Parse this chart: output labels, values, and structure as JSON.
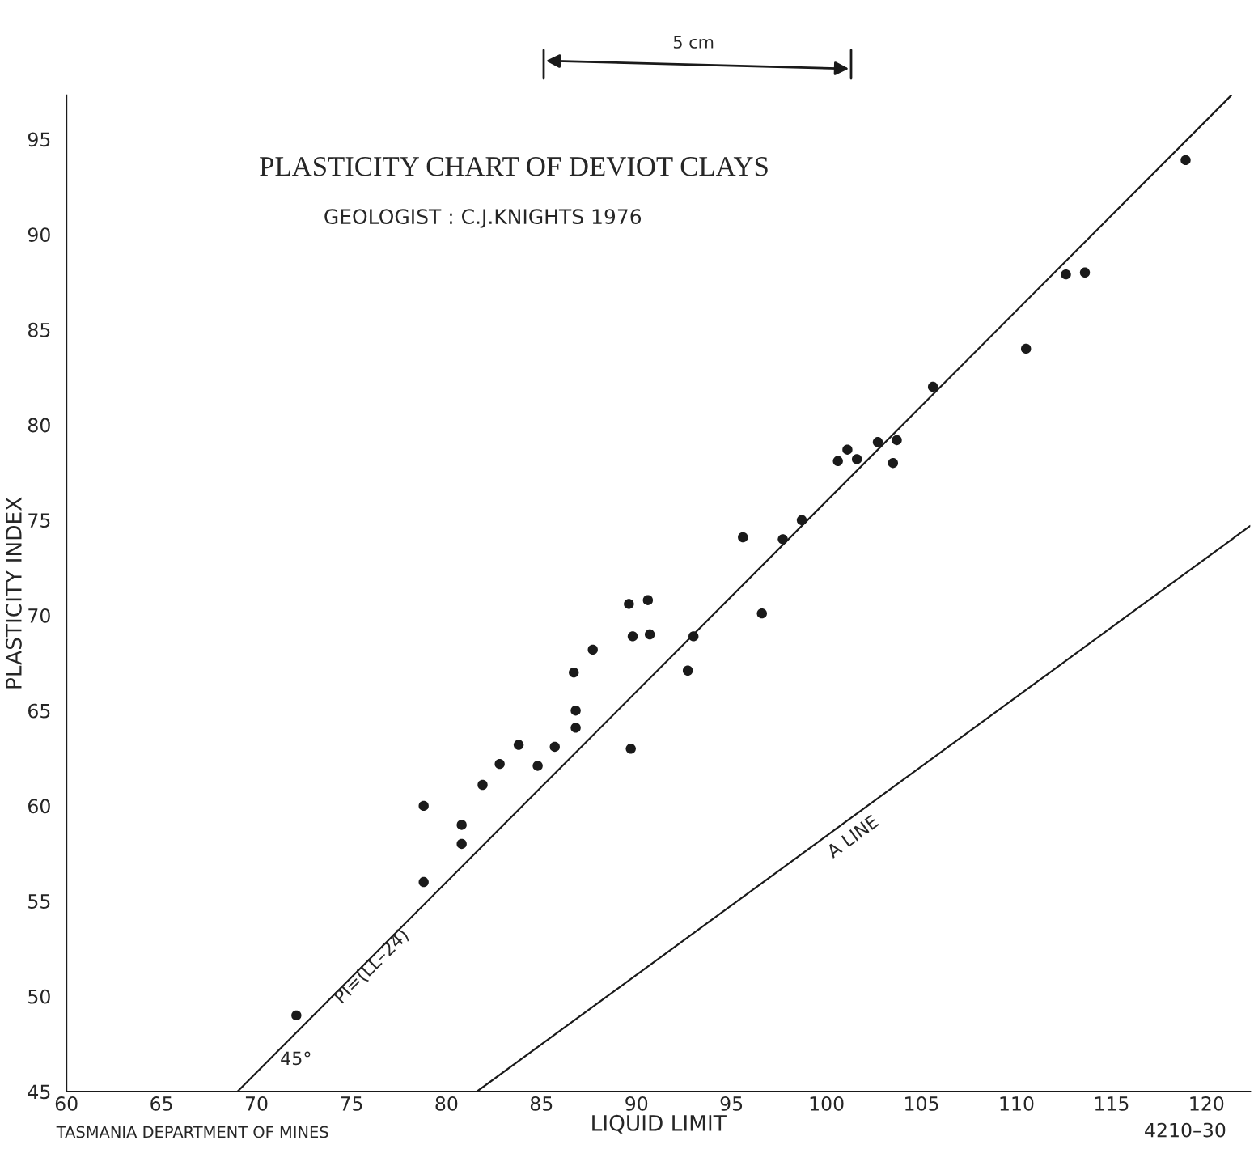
{
  "chart_data": {
    "type": "scatter",
    "title": "PLASTICITY CHART OF DEVIOT CLAYS",
    "subtitle": "GEOLOGIST : C.J.KNIGHTS 1976",
    "xlabel": "LIQUID LIMIT",
    "ylabel": "PLASTICITY INDEX",
    "xlim": [
      60,
      122.3
    ],
    "ylim": [
      45,
      97.3
    ],
    "xticks": [
      60,
      65,
      70,
      75,
      80,
      85,
      90,
      95,
      100,
      105,
      110,
      115,
      120
    ],
    "yticks": [
      45,
      50,
      55,
      60,
      65,
      70,
      75,
      80,
      85,
      90,
      95
    ],
    "grid": false,
    "legend": false,
    "marker": "circle",
    "series": [
      {
        "color": "#1a1a1a",
        "x": [
          72.1,
          78.8,
          78.8,
          80.8,
          80.8,
          81.9,
          82.8,
          83.8,
          84.8,
          85.7,
          86.7,
          86.8,
          86.8,
          87.7,
          89.6,
          90.6,
          89.8,
          90.7,
          93.0,
          92.7,
          89.7,
          95.6,
          96.6,
          97.7,
          98.7,
          100.6,
          101.1,
          101.6,
          102.7,
          103.7,
          103.5,
          105.6,
          110.5,
          112.6,
          113.6,
          118.9
        ],
        "values": [
          49.0,
          60.0,
          56.0,
          59.0,
          58.0,
          61.1,
          62.2,
          63.2,
          62.1,
          63.1,
          67.0,
          65.0,
          64.1,
          68.2,
          70.6,
          70.8,
          68.9,
          69.0,
          68.9,
          67.1,
          63.0,
          74.1,
          70.1,
          74.0,
          75.0,
          78.1,
          78.7,
          78.2,
          79.1,
          79.2,
          78.0,
          82.0,
          84.0,
          87.9,
          88.0,
          93.9
        ]
      },
      {
        "type": "line",
        "color": "#1a1a1a",
        "line_style": "solid",
        "marker": "none",
        "x": [
          69,
          121.3
        ],
        "values": [
          45,
          97.3
        ]
      },
      {
        "type": "line",
        "color": "#1a1a1a",
        "line_style": "solid",
        "marker": "none",
        "x": [
          81.6,
          122.3
        ],
        "values": [
          45,
          74.7
        ]
      }
    ],
    "annotations": [
      "TASMANIA DEPARTMENT OF MINES",
      "4210–30",
      "5 cm",
      "45°",
      "PI=(LL–24)",
      "A LINE"
    ]
  }
}
